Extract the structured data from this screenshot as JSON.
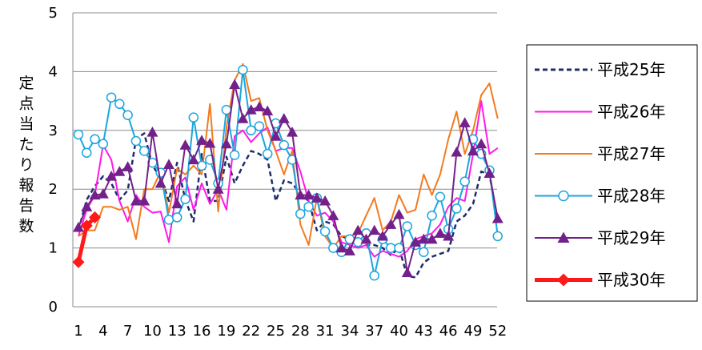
{
  "chart_data": {
    "type": "line",
    "ylabel": "定点当たり報告数",
    "ylim": [
      0,
      5
    ],
    "yticks": [
      "0",
      "1",
      "2",
      "3",
      "4",
      "5"
    ],
    "x_tick_labels": [
      "1",
      "4",
      "7",
      "10",
      "13",
      "16",
      "19",
      "22",
      "25",
      "28",
      "31",
      "34",
      "37",
      "40",
      "43",
      "46",
      "49",
      "52"
    ],
    "grid": "horizontal",
    "legend_position": "right",
    "series": [
      {
        "name": "平成25年",
        "color": "#1f2d6e",
        "style": "dashed",
        "marker": "none",
        "values": [
          1.3,
          1.82,
          2.05,
          2.22,
          2.1,
          1.82,
          1.98,
          2.85,
          2.95,
          2.4,
          2.2,
          1.8,
          2.45,
          1.82,
          1.45,
          2.6,
          1.8,
          1.8,
          2.55,
          2.1,
          2.4,
          2.65,
          2.6,
          2.5,
          1.8,
          2.15,
          2.1,
          1.92,
          1.8,
          1.3,
          1.45,
          1.4,
          1.2,
          1.15,
          1.1,
          1.05,
          1.05,
          1.0,
          0.88,
          1.0,
          0.52,
          0.5,
          0.75,
          0.85,
          0.9,
          0.95,
          1.45,
          1.55,
          1.75,
          2.3,
          2.25,
          1.45
        ]
      },
      {
        "name": "平成26年",
        "color": "#ff1ae8",
        "style": "solid",
        "marker": "none",
        "values": [
          1.2,
          1.65,
          1.9,
          2.75,
          2.5,
          1.8,
          1.45,
          1.9,
          1.7,
          1.6,
          1.62,
          1.1,
          2.05,
          2.2,
          1.65,
          2.1,
          1.75,
          2.0,
          1.65,
          2.9,
          3.0,
          2.8,
          2.95,
          3.05,
          2.65,
          2.7,
          2.7,
          2.3,
          1.8,
          1.55,
          1.6,
          1.45,
          1.1,
          1.05,
          1.0,
          1.05,
          0.85,
          0.95,
          0.9,
          0.85,
          0.95,
          1.15,
          1.2,
          1.25,
          1.4,
          1.7,
          1.85,
          1.8,
          2.6,
          3.5,
          2.6,
          2.7
        ]
      },
      {
        "name": "平成27年",
        "color": "#f47a1f",
        "style": "solid",
        "marker": "none",
        "values": [
          1.2,
          1.3,
          1.3,
          1.7,
          1.7,
          1.65,
          1.7,
          1.15,
          2.0,
          2.0,
          2.3,
          1.6,
          2.35,
          2.25,
          2.4,
          2.25,
          3.45,
          1.62,
          3.05,
          3.85,
          4.13,
          3.5,
          3.55,
          3.0,
          2.65,
          2.25,
          2.65,
          1.4,
          1.05,
          1.85,
          1.2,
          1.0,
          1.2,
          1.2,
          1.25,
          1.55,
          1.85,
          1.3,
          1.45,
          1.9,
          1.6,
          1.65,
          2.25,
          1.9,
          2.25,
          2.85,
          3.32,
          2.6,
          3.0,
          3.6,
          3.8,
          3.2
        ]
      },
      {
        "name": "平成28年",
        "color": "#1aa6dd",
        "style": "solid",
        "marker": "circle",
        "values": [
          2.93,
          2.62,
          2.85,
          2.77,
          3.56,
          3.45,
          3.26,
          2.82,
          2.65,
          2.45,
          2.28,
          1.48,
          1.52,
          1.83,
          3.22,
          2.4,
          2.5,
          2.1,
          3.35,
          2.58,
          4.03,
          3.0,
          3.07,
          2.6,
          3.12,
          2.75,
          2.5,
          1.58,
          1.7,
          1.85,
          1.28,
          1.0,
          0.93,
          1.15,
          1.1,
          1.25,
          0.53,
          1.15,
          1.0,
          1.0,
          1.37,
          1.05,
          0.93,
          1.55,
          1.87,
          1.32,
          1.67,
          2.13,
          2.85,
          2.6,
          2.32,
          1.2
        ]
      },
      {
        "name": "平成29年",
        "color": "#73218a",
        "style": "solid",
        "marker": "triangle",
        "values": [
          1.35,
          1.7,
          1.9,
          1.92,
          2.22,
          2.3,
          2.38,
          1.8,
          1.8,
          2.97,
          2.1,
          2.42,
          1.75,
          2.75,
          2.5,
          2.83,
          2.78,
          2.0,
          2.77,
          3.78,
          3.2,
          3.35,
          3.4,
          3.33,
          2.9,
          3.2,
          2.97,
          1.9,
          1.9,
          1.85,
          1.8,
          1.55,
          1.0,
          0.95,
          1.3,
          1.15,
          1.3,
          1.2,
          1.4,
          1.57,
          0.58,
          1.1,
          1.15,
          1.15,
          1.25,
          1.2,
          2.63,
          3.13,
          2.65,
          2.77,
          2.27,
          1.5
        ]
      },
      {
        "name": "平成30年",
        "color": "#ff1a1a",
        "style": "solid",
        "marker": "diamond",
        "values": [
          0.76,
          1.38,
          1.52
        ]
      }
    ]
  }
}
